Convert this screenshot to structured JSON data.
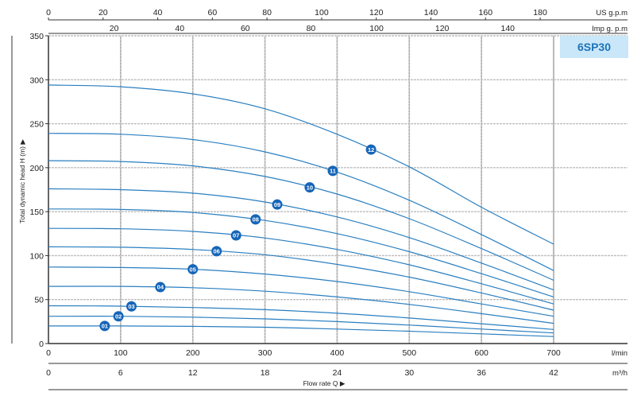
{
  "model_label": "6SP30",
  "chart_data": {
    "type": "line",
    "title": "",
    "ylabel": "Total dynamic head H (m) ▶",
    "xlabel": "Flow rate Q ▶",
    "ylim": [
      0,
      350
    ],
    "yticks": [
      0,
      50,
      100,
      150,
      200,
      250,
      300,
      350
    ],
    "grid": true,
    "line_color": "#2a7fc0",
    "badge_color": "#1565b8",
    "axes": {
      "us_gpm": {
        "unit": "US g.p.m",
        "ticks": [
          0,
          20,
          40,
          60,
          80,
          100,
          120,
          140,
          160,
          180
        ]
      },
      "imp_gpm": {
        "unit": "Imp g. p.m",
        "ticks": [
          20,
          40,
          60,
          80,
          100,
          120,
          140
        ]
      },
      "lmin": {
        "unit": "l/min",
        "ticks": [
          0,
          100,
          200,
          300,
          400,
          500,
          600,
          700
        ]
      },
      "m3h": {
        "unit": "m³/h",
        "ticks": [
          0,
          6,
          12,
          18,
          24,
          30,
          36,
          42
        ]
      }
    },
    "x": [
      0,
      100,
      200,
      300,
      400,
      500,
      600,
      700
    ],
    "series": [
      {
        "name": "01",
        "label_x": 78,
        "values": [
          20,
          20,
          19.5,
          18.5,
          16.5,
          14,
          11,
          8
        ]
      },
      {
        "name": "02",
        "label_x": 97,
        "values": [
          31,
          31,
          30,
          28,
          25,
          21,
          16.5,
          12
        ]
      },
      {
        "name": "03",
        "label_x": 115,
        "values": [
          43,
          42.5,
          41,
          38.5,
          34.5,
          29,
          22.5,
          16
        ]
      },
      {
        "name": "04",
        "label_x": 155,
        "values": [
          65,
          65,
          63.5,
          59.5,
          53,
          44.5,
          34,
          23
        ]
      },
      {
        "name": "05",
        "label_x": 200,
        "values": [
          87,
          86.5,
          84.5,
          79,
          70.5,
          59,
          45,
          31
        ]
      },
      {
        "name": "06",
        "label_x": 233,
        "values": [
          110,
          109.5,
          107,
          101,
          90,
          75.5,
          57.5,
          38
        ]
      },
      {
        "name": "07",
        "label_x": 260,
        "values": [
          131,
          130.5,
          127.5,
          120,
          107,
          89.5,
          68,
          45
        ]
      },
      {
        "name": "08",
        "label_x": 287,
        "values": [
          153,
          152.5,
          149,
          140,
          125,
          104.5,
          79.5,
          53
        ]
      },
      {
        "name": "09",
        "label_x": 317,
        "values": [
          176,
          175,
          171,
          161,
          144,
          120.5,
          91.5,
          61
        ]
      },
      {
        "name": "10",
        "label_x": 362,
        "values": [
          208,
          207,
          202,
          190,
          170,
          142,
          108,
          72
        ]
      },
      {
        "name": "11",
        "label_x": 394,
        "values": [
          239,
          238,
          232,
          218,
          195,
          163,
          124,
          83
        ]
      },
      {
        "name": "12",
        "label_x": 447,
        "values": [
          294,
          292,
          284,
          267,
          238,
          201,
          155,
          113
        ]
      }
    ]
  }
}
